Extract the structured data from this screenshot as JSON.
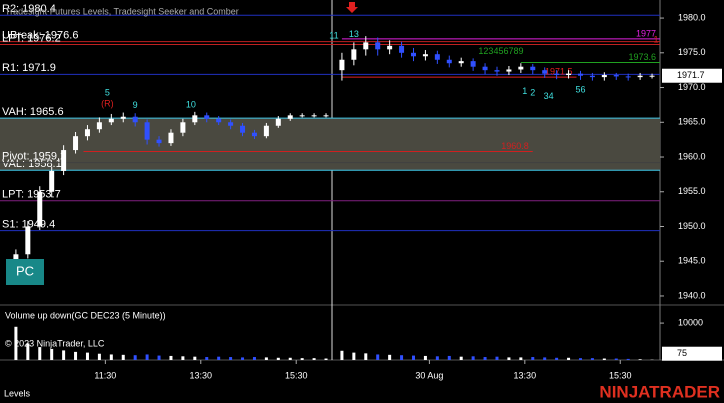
{
  "chart_data": {
    "type": "candlestick",
    "title": "Tradesight Futures Levels, Tradesight Seeker and Comber",
    "x": [
      4,
      7,
      10,
      13,
      16,
      19,
      22,
      25,
      28,
      31,
      34,
      37,
      40,
      43,
      46,
      49,
      52,
      55,
      58,
      61,
      64,
      67,
      70,
      73,
      76,
      79,
      82,
      86,
      89,
      92,
      95,
      98,
      101,
      104,
      107,
      110,
      113,
      116,
      119,
      122,
      125,
      128,
      131,
      134,
      137,
      140,
      143,
      146,
      149,
      152,
      155,
      158,
      161,
      164
    ],
    "open": [
      1945,
      1946,
      1950,
      1955,
      1958,
      1961,
      1963,
      1964,
      1965,
      1965.5,
      1965.8,
      1965,
      1962.5,
      1962,
      1963.5,
      1965,
      1966,
      1965.5,
      1965,
      1964.5,
      1963.5,
      1963,
      1964.5,
      1965.5,
      1966,
      1966,
      1966,
      1972.5,
      1974,
      1975.5,
      1976.5,
      1975.5,
      1976,
      1975,
      1974.5,
      1974.8,
      1974,
      1973.5,
      1973.8,
      1973,
      1972.5,
      1972.3,
      1972.6,
      1973,
      1972.5,
      1972,
      1971.8,
      1972,
      1971.7,
      1971.5,
      1971.8,
      1971.6,
      1971.5,
      1971.7
    ],
    "high": [
      1946.7,
      1950.8,
      1955.8,
      1958.6,
      1961.7,
      1963.6,
      1964.6,
      1965.7,
      1966.2,
      1966.4,
      1966.3,
      1965.4,
      1963,
      1964,
      1965.5,
      1966.5,
      1966.4,
      1965.9,
      1965.4,
      1964.9,
      1963.9,
      1964.9,
      1965.9,
      1966.3,
      1966.3,
      1966.3,
      1966.3,
      1975,
      1976.5,
      1977.4,
      1977.2,
      1976.8,
      1976.6,
      1975.7,
      1975.4,
      1975.3,
      1974.6,
      1974.3,
      1974.2,
      1973.5,
      1973,
      1973.1,
      1973.5,
      1973.4,
      1972.9,
      1972.5,
      1972.5,
      1972.4,
      1972.1,
      1972.2,
      1972.1,
      1972,
      1972.1,
      1972
    ],
    "low": [
      1944.3,
      1945.4,
      1949.5,
      1954.2,
      1957.4,
      1960.5,
      1962.4,
      1963.5,
      1964.6,
      1965,
      1964.4,
      1961.8,
      1961.5,
      1961.6,
      1963,
      1964.6,
      1965,
      1964.6,
      1964,
      1963,
      1962.6,
      1962.7,
      1964.2,
      1965.2,
      1965.7,
      1965.7,
      1965.7,
      1971,
      1973.2,
      1974.6,
      1974.6,
      1974.8,
      1974.3,
      1973.8,
      1973.9,
      1973.4,
      1972.9,
      1973,
      1972.4,
      1971.9,
      1971.7,
      1971.8,
      1972.1,
      1971.9,
      1971.4,
      1971.2,
      1971.3,
      1971.1,
      1971,
      1971,
      1971.1,
      1971,
      1971.1,
      1971.3
    ],
    "close": [
      1946,
      1950,
      1955,
      1958,
      1961,
      1963,
      1964,
      1965,
      1965.5,
      1965.8,
      1965,
      1962.5,
      1962,
      1963.5,
      1965,
      1966,
      1965.5,
      1965,
      1964.5,
      1963.5,
      1963,
      1964.5,
      1965.5,
      1966,
      1966,
      1966,
      1966,
      1974,
      1975.5,
      1976.5,
      1975.5,
      1976,
      1975,
      1974.5,
      1974.8,
      1974,
      1973.5,
      1973.8,
      1973,
      1972.5,
      1972.3,
      1972.6,
      1973,
      1972.5,
      1972,
      1971.8,
      1972,
      1971.7,
      1971.5,
      1971.8,
      1971.6,
      1971.5,
      1971.7,
      1971.7
    ],
    "up_color": "#ffffff",
    "down_color": "#3050ff",
    "xlim": [
      0,
      166
    ],
    "xticks": [
      {
        "value": 26.5,
        "label": "11:30"
      },
      {
        "value": 50.5,
        "label": "13:30"
      },
      {
        "value": 74.5,
        "label": "15:30"
      },
      {
        "value": 108,
        "label": "30 Aug"
      },
      {
        "value": 132,
        "label": "13:30"
      },
      {
        "value": 156,
        "label": "15:30"
      }
    ],
    "ylim": [
      1938.7,
      1982.6
    ],
    "yticks": [
      {
        "value": 1940,
        "label": "1940.0"
      },
      {
        "value": 1945,
        "label": "1945.0"
      },
      {
        "value": 1950,
        "label": "1950.0"
      },
      {
        "value": 1955,
        "label": "1955.0"
      },
      {
        "value": 1960,
        "label": "1960.0"
      },
      {
        "value": 1965,
        "label": "1965.0"
      },
      {
        "value": 1970,
        "label": "1970.0"
      },
      {
        "value": 1975,
        "label": "1975.0"
      },
      {
        "value": 1980,
        "label": "1980.0"
      }
    ],
    "levels": [
      {
        "label": "R2: 1980.4",
        "value": 1980.4,
        "color": "#2030c0"
      },
      {
        "label": "UBreak: 1976.6",
        "value": 1976.6,
        "color": "#c02020"
      },
      {
        "label": "LPT: 1976.2",
        "value": 1976.2,
        "color": "#c02020"
      },
      {
        "label": "R1: 1971.9",
        "value": 1971.9,
        "color": "#2030c0"
      },
      {
        "label": "Pivot: 1959.2",
        "value": 1959.2,
        "color": "#404040"
      },
      {
        "label": "LPT: 1953.7",
        "value": 1953.7,
        "color": "#802080"
      },
      {
        "label": "S1: 1949.4",
        "value": 1949.4,
        "color": "#2030c0"
      }
    ],
    "value_area": {
      "color": "#4a4940",
      "line_color": "#40c8e8",
      "high": {
        "label": "VAH: 1965.6",
        "value": 1965.6
      },
      "low": {
        "label": "VAL: 1958.1",
        "value": 1958.1
      }
    },
    "segments": [
      {
        "value": 1977.0,
        "color": "#e020e0",
        "x": [
          86,
          166
        ]
      },
      {
        "value": 1973.6,
        "color": "#20a020",
        "x": [
          131,
          166
        ]
      },
      {
        "value": 1971.5,
        "color": "#e02020",
        "x": [
          86,
          145
        ]
      },
      {
        "value": 1960.8,
        "color": "#d02020",
        "x": [
          21,
          134
        ]
      }
    ],
    "annotations": [
      {
        "text": "5",
        "x": 27,
        "y": 1969.2,
        "color": "#40e0e0"
      },
      {
        "text": "(R)",
        "x": 27,
        "y": 1967.6,
        "color": "#e02020"
      },
      {
        "text": "9",
        "x": 34,
        "y": 1967.4,
        "color": "#40e0e0"
      },
      {
        "text": "10",
        "x": 48,
        "y": 1967.5,
        "color": "#40e0e0"
      },
      {
        "text": "11",
        "x": 84,
        "y": 1977.4,
        "color": "#40e0e0"
      },
      {
        "text": "13",
        "x": 89,
        "y": 1977.6,
        "color": "#40e0e0"
      },
      {
        "text": "123456789",
        "x": 126,
        "y": 1975.2,
        "color": "#20a020"
      },
      {
        "text": "1",
        "x": 132,
        "y": 1969.4,
        "color": "#40e0e0"
      },
      {
        "text": "2",
        "x": 134,
        "y": 1969.2,
        "color": "#40e0e0"
      },
      {
        "text": "34",
        "x": 138,
        "y": 1968.7,
        "color": "#40e0e0"
      },
      {
        "text": "56",
        "x": 146,
        "y": 1969.6,
        "color": "#40e0e0"
      },
      {
        "text": "1",
        "x": 165,
        "y": 1976.8,
        "color": "#e02020"
      }
    ],
    "volume": {
      "title": "Volume up down(GC DEC23 (5 Minute))",
      "values": [
        9000,
        4500,
        3500,
        3000,
        2600,
        2200,
        2000,
        1700,
        1500,
        1400,
        1300,
        1500,
        1200,
        1100,
        1000,
        900,
        800,
        900,
        800,
        700,
        800,
        700,
        600,
        600,
        500,
        500,
        400,
        2500,
        2000,
        1800,
        1500,
        1400,
        1300,
        1200,
        1100,
        1000,
        1100,
        900,
        1000,
        800,
        900,
        700,
        700,
        800,
        700,
        600,
        600,
        500,
        500,
        400,
        400,
        300,
        200,
        75
      ],
      "ylim": [
        0,
        14900
      ],
      "yticks": [
        10000
      ]
    },
    "copyright": "© 2023 NinjaTrader, LLC",
    "footer": "Levels",
    "logo": "NINJATRADER",
    "button": "PC"
  }
}
